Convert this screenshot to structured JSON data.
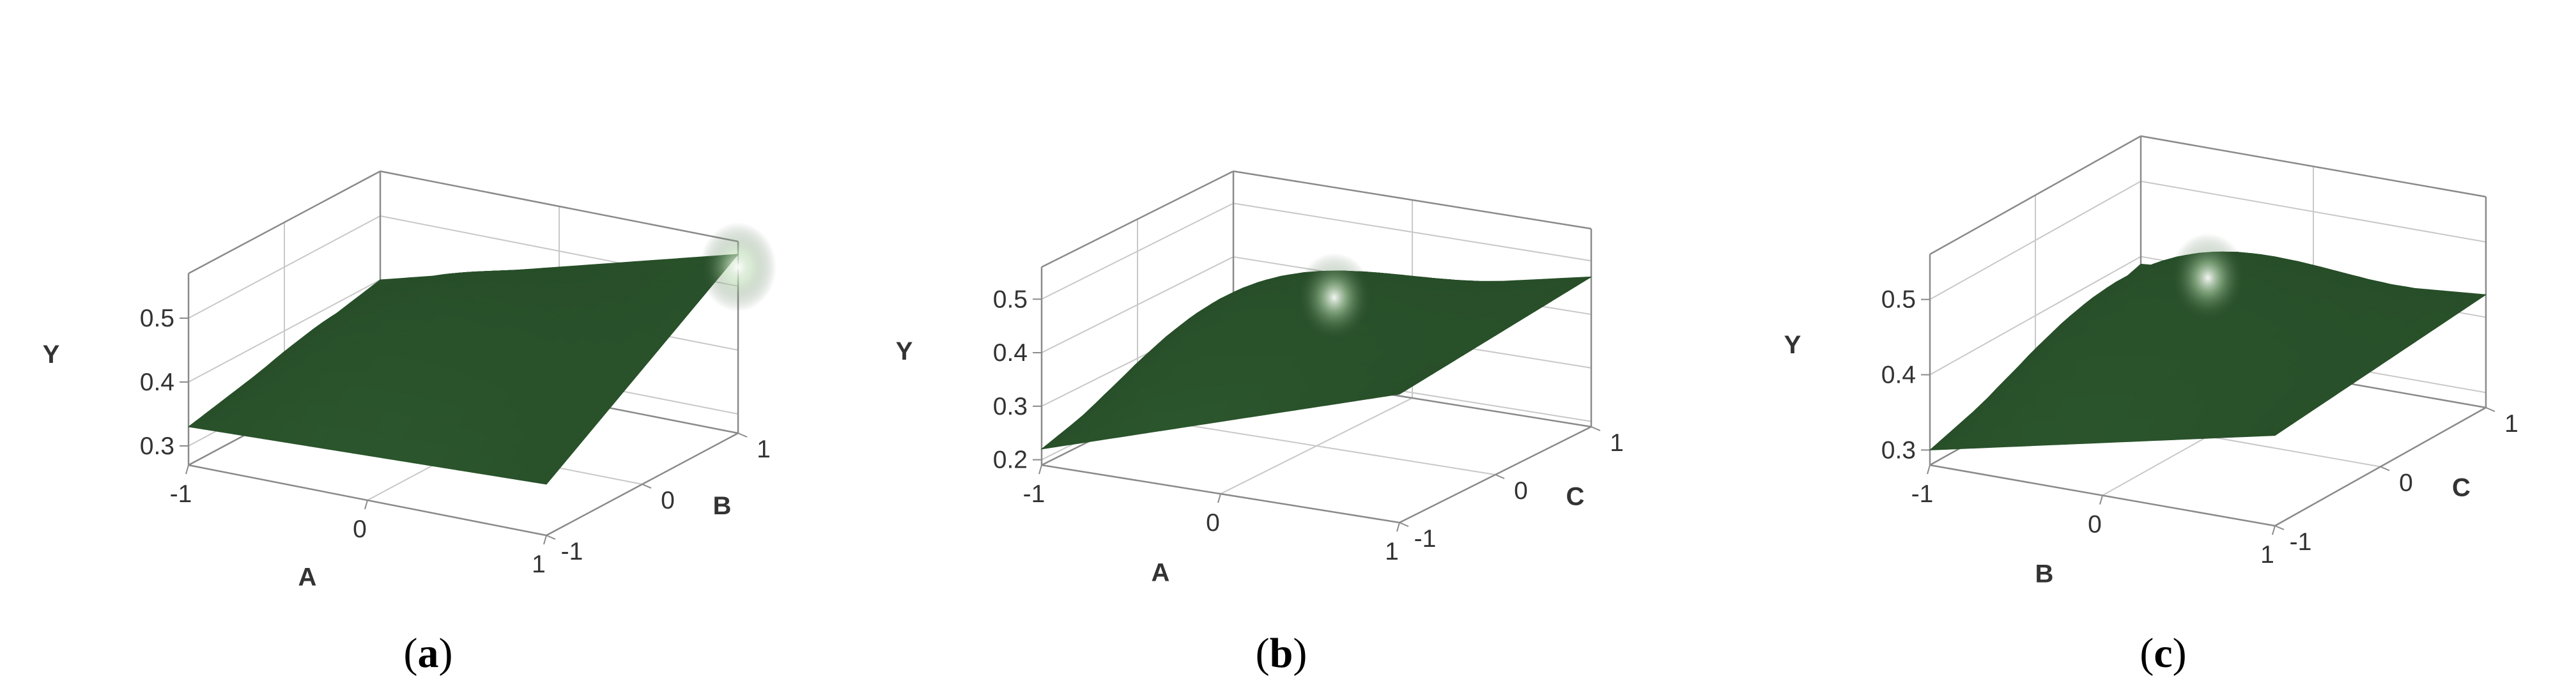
{
  "colors": {
    "surface": "#1f3f20",
    "surface_light": "#3f7a41",
    "highlight": "#ffffff",
    "axis": "#8a8a8a",
    "grid": "#c8c8c8"
  },
  "chart_data": [
    {
      "type": "surface",
      "xlabel": "A",
      "ylabel": "B",
      "zlabel": "Y",
      "x_ticks": [
        "-1",
        "0",
        "1"
      ],
      "y_ticks": [
        "-1",
        "0",
        "1"
      ],
      "z_ticks": [
        "0.3",
        "0.4",
        "0.5"
      ],
      "zlim": [
        0.27,
        0.57
      ],
      "corners": {
        "x-1_y-1": 0.33,
        "x1_y-1": 0.35,
        "x-1_y1": 0.4,
        "x1_y1": 0.55
      },
      "peak": 0.55,
      "caption_open": "(",
      "caption_letter": "a",
      "caption_close": ")"
    },
    {
      "type": "surface",
      "xlabel": "A",
      "ylabel": "C",
      "zlabel": "Y",
      "x_ticks": [
        "-1",
        "0",
        "1"
      ],
      "y_ticks": [
        "-1",
        "0",
        "1"
      ],
      "z_ticks": [
        "0.2",
        "0.3",
        "0.4",
        "0.5"
      ],
      "zlim": [
        0.19,
        0.56
      ],
      "corners": {
        "x-1_y-1": 0.22,
        "x1_y-1": 0.43,
        "x-1_y1": 0.33,
        "x1_y1": 0.47
      },
      "peak": 0.54,
      "caption_open": "(",
      "caption_letter": "b",
      "caption_close": ")"
    },
    {
      "type": "surface",
      "xlabel": "B",
      "ylabel": "C",
      "zlabel": "Y",
      "x_ticks": [
        "-1",
        "0",
        "1"
      ],
      "y_ticks": [
        "-1",
        "0",
        "1"
      ],
      "z_ticks": [
        "0.3",
        "0.4",
        "0.5"
      ],
      "zlim": [
        0.28,
        0.56
      ],
      "corners": {
        "x-1_y-1": 0.3,
        "x1_y-1": 0.4,
        "x-1_y1": 0.39,
        "x1_y1": 0.43
      },
      "peak": 0.55,
      "caption_open": "(",
      "caption_letter": "c",
      "caption_close": ")"
    }
  ]
}
